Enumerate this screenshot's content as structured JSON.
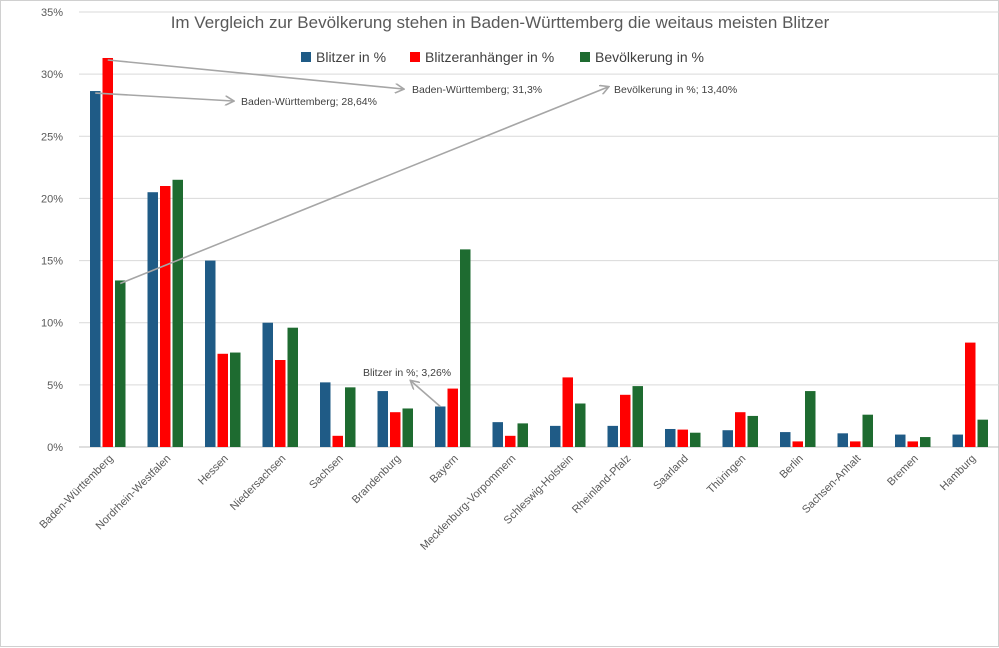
{
  "chart_data": {
    "type": "bar",
    "title": "Im Vergleich zur Bevölkerung stehen in Baden-Württemberg die weitaus meisten Blitzer",
    "xlabel": "",
    "ylabel": "",
    "ylim": [
      0,
      35
    ],
    "yticks": [
      "0%",
      "5%",
      "10%",
      "15%",
      "20%",
      "25%",
      "30%",
      "35%"
    ],
    "grid": true,
    "legend_position": "top",
    "categories": [
      "Baden-Württemberg",
      "Nordrhein-Westfalen",
      "Hessen",
      "Niedersachsen",
      "Sachsen",
      "Brandenburg",
      "Bayern",
      "Mecklenburg-Vorpommern",
      "Schleswig-Holstein",
      "Rheinland-Pfalz",
      "Saarland",
      "Thüringen",
      "Berlin",
      "Sachsen-Anhalt",
      "Bremen",
      "Hamburg"
    ],
    "series": [
      {
        "name": "Blitzer in %",
        "color": "#1f5b86",
        "values": [
          28.64,
          20.5,
          15.0,
          10.0,
          5.2,
          4.5,
          3.26,
          2.0,
          1.7,
          1.7,
          1.45,
          1.35,
          1.2,
          1.1,
          1.0,
          1.0
        ]
      },
      {
        "name": "Blitzeranhänger in %",
        "color": "#ff0000",
        "values": [
          31.3,
          21.0,
          7.5,
          7.0,
          0.9,
          2.8,
          4.7,
          0.9,
          5.6,
          4.2,
          1.4,
          2.8,
          0.45,
          0.45,
          0.45,
          8.4
        ]
      },
      {
        "name": "Bevölkerung in %",
        "color": "#1e6b30",
        "values": [
          13.4,
          21.5,
          7.6,
          9.6,
          4.8,
          3.1,
          15.9,
          1.9,
          3.5,
          4.9,
          1.15,
          2.5,
          4.5,
          2.6,
          0.8,
          2.2
        ]
      }
    ],
    "annotations": [
      {
        "text": "Baden-Württemberg; 28,64%",
        "series": 0,
        "category": 0,
        "value": 28.64
      },
      {
        "text": "Baden-Württemberg; 31,3%",
        "series": 1,
        "category": 0,
        "value": 31.3
      },
      {
        "text": "Bevölkerung in %; 13,40%",
        "series": 2,
        "category": 0,
        "value": 13.4
      },
      {
        "text": "Blitzer in %; 3,26%",
        "series": 0,
        "category": 6,
        "value": 3.26
      }
    ]
  }
}
